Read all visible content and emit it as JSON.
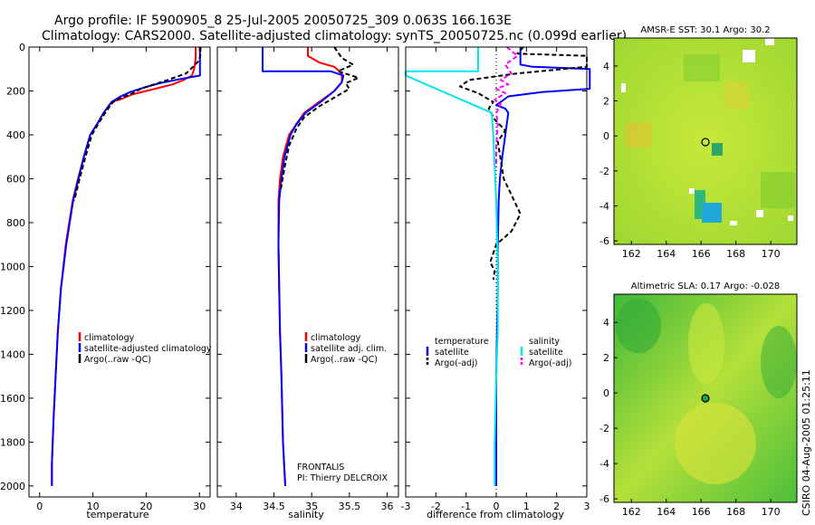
{
  "title_line1": "Argo profile: IF 5900905_8 25-Jul-2005 20050725_309 0.063S 166.163E",
  "title_line2": "Climatology: CARS2000. Satellite-adjusted climatology: synTS_20050725.nc (0.099d earlier)",
  "side_label": "CSIRO 04-Aug-2005 01:25:11",
  "chart_data": [
    {
      "type": "line",
      "panel": "temperature",
      "xlabel": "temperature",
      "xlim": [
        -2,
        32
      ],
      "ylim": [
        2050,
        0
      ],
      "xticks": [
        "0",
        "10",
        "20",
        "30"
      ],
      "yticks": [
        "0",
        "200",
        "400",
        "600",
        "800",
        "1000",
        "1200",
        "1400",
        "1600",
        "1800",
        "2000"
      ],
      "legend": [
        "climatology",
        "satellite-adjusted climatology",
        "Argo(..raw -QC)"
      ],
      "series": [
        {
          "name": "climatology",
          "color": "#ff0000",
          "dash": "",
          "width": 2,
          "x": [
            29.3,
            29.3,
            29.0,
            28.6,
            27.0,
            25.0,
            22.5,
            20.0,
            17.5,
            15.5,
            13.5,
            12.0,
            10.8,
            9.5,
            8.3,
            7.2,
            6.2,
            4.9,
            4.0,
            3.4,
            3.0,
            2.6,
            2.3,
            2.3
          ],
          "y": [
            0,
            50,
            100,
            130,
            150,
            170,
            185,
            200,
            215,
            235,
            250,
            300,
            350,
            400,
            500,
            600,
            700,
            900,
            1100,
            1300,
            1500,
            1700,
            1900,
            2000
          ]
        },
        {
          "name": "satellite-adjusted climatology",
          "color": "#0000ff",
          "dash": "",
          "width": 2,
          "x": [
            30.1,
            30.1,
            30.1,
            30.1,
            26.5,
            22.5,
            19.5,
            17.0,
            15.2,
            13.5,
            12.0,
            10.8,
            9.5,
            8.3,
            7.3,
            6.3,
            5.0,
            4.0,
            3.4,
            3.0,
            2.6,
            2.3,
            2.3
          ],
          "y": [
            0,
            50,
            100,
            130,
            145,
            165,
            185,
            205,
            225,
            250,
            300,
            350,
            400,
            500,
            600,
            700,
            900,
            1100,
            1300,
            1500,
            1700,
            1900,
            2000
          ]
        },
        {
          "name": "Argo(..raw -QC)",
          "color": "#000000",
          "dash": "5,3",
          "width": 2,
          "x": [
            30.2,
            30.2,
            30.0,
            28.8,
            27.5,
            24.0,
            21.5,
            19.0,
            17.5,
            15.5,
            13.8,
            12.3,
            11.0,
            9.8,
            8.6,
            7.5,
            6.5
          ],
          "y": [
            0,
            30,
            60,
            90,
            120,
            150,
            170,
            190,
            210,
            230,
            250,
            300,
            350,
            400,
            500,
            600,
            700
          ]
        }
      ]
    },
    {
      "type": "line",
      "panel": "salinity",
      "xlabel": "salinity",
      "xlim": [
        33.75,
        36.15
      ],
      "ylim": [
        2050,
        0
      ],
      "xticks": [
        "34",
        "34.5",
        "35",
        "35.5",
        "36"
      ],
      "legend": [
        "climatology",
        "satellite adj. clim.",
        "Argo(..raw -QC)"
      ],
      "annotation": [
        "FRONTALIS",
        "PI: Thierry DELCROIX"
      ],
      "series": [
        {
          "name": "climatology",
          "color": "#ff0000",
          "dash": "",
          "width": 2,
          "x": [
            34.95,
            34.95,
            35.1,
            35.3,
            35.4,
            35.4,
            35.3,
            35.1,
            34.9,
            34.8,
            34.7,
            34.62,
            34.58,
            34.56,
            34.56,
            34.57,
            34.58,
            34.6,
            34.62,
            34.65
          ],
          "y": [
            0,
            40,
            70,
            90,
            120,
            160,
            200,
            250,
            300,
            350,
            400,
            500,
            600,
            700,
            900,
            1100,
            1300,
            1500,
            1800,
            2000
          ]
        },
        {
          "name": "satellite adj. clim.",
          "color": "#0000ff",
          "dash": "",
          "width": 2,
          "x": [
            34.35,
            34.35,
            34.35,
            35.25,
            35.42,
            35.4,
            35.3,
            35.12,
            34.92,
            34.8,
            34.72,
            34.64,
            34.6,
            34.57,
            34.56,
            34.57,
            34.58,
            34.6,
            34.62,
            34.65
          ],
          "y": [
            0,
            60,
            110,
            110,
            130,
            160,
            200,
            250,
            300,
            350,
            400,
            500,
            600,
            700,
            900,
            1100,
            1300,
            1500,
            1800,
            2000
          ]
        },
        {
          "name": "Argo(..raw -QC)",
          "color": "#000000",
          "dash": "5,3",
          "width": 2,
          "x": [
            35.3,
            35.4,
            35.55,
            35.35,
            35.62,
            35.45,
            35.5,
            35.3,
            35.1,
            34.9,
            34.8,
            34.7,
            34.64,
            34.59
          ],
          "y": [
            0,
            50,
            80,
            110,
            140,
            165,
            190,
            230,
            270,
            320,
            370,
            450,
            550,
            650
          ]
        }
      ]
    },
    {
      "type": "line",
      "panel": "difference",
      "xlabel": "difference from climatology",
      "xlim": [
        -3,
        3
      ],
      "ylim": [
        2050,
        0
      ],
      "xticks": [
        "-3",
        "-2",
        "-1",
        "0",
        "1",
        "2",
        "3"
      ],
      "legend_left": {
        "heading": "temperature",
        "items": [
          "satellite",
          "Argo(-adj)"
        ]
      },
      "legend_right": {
        "heading": "salinity",
        "items": [
          "satellite",
          "Argo(-adj)"
        ]
      },
      "series": [
        {
          "name": "temperature satellite",
          "color": "#0000ff",
          "dash": "",
          "width": 2,
          "x": [
            0.8,
            0.8,
            1.2,
            3.1,
            3.1,
            1.5,
            0.4,
            0.0,
            0.3,
            0.4,
            0.3,
            0.2,
            0.12,
            0.08,
            0.05,
            0.05,
            0.0,
            0.0
          ],
          "y": [
            0,
            80,
            90,
            100,
            190,
            205,
            225,
            265,
            280,
            300,
            400,
            500,
            600,
            700,
            900,
            1100,
            1500,
            2000
          ]
        },
        {
          "name": "temperature Argo(-adj)",
          "color": "#000000",
          "dash": "5,3",
          "width": 2,
          "x": [
            0.9,
            0.7,
            3.0,
            3.0,
            0.7,
            -0.9,
            -1.2,
            -0.6,
            -0.1,
            -0.25,
            -0.05,
            0.3,
            0.05,
            0.25,
            0.8,
            0.5,
            0.0,
            -0.2,
            -0.05,
            -0.1
          ],
          "y": [
            0,
            30,
            40,
            90,
            120,
            150,
            180,
            210,
            250,
            280,
            330,
            380,
            430,
            600,
            760,
            840,
            900,
            980,
            1020,
            1060
          ]
        },
        {
          "name": "salinity satellite",
          "color": "#00e5ee",
          "dash": "",
          "width": 2,
          "x": [
            -0.6,
            -0.6,
            -3.0,
            -3.0,
            -0.15,
            -0.1,
            0.0,
            0.05,
            0.05,
            0.0,
            -0.05,
            -0.05
          ],
          "y": [
            0,
            110,
            110,
            130,
            300,
            400,
            700,
            1000,
            1300,
            1500,
            1800,
            2000
          ]
        },
        {
          "name": "salinity Argo(-adj)",
          "color": "#ff00ff",
          "dash": "5,3",
          "width": 2,
          "x": [
            0.35,
            0.7,
            0.3,
            0.5,
            0.15,
            0.4,
            0.0,
            0.3,
            -0.05,
            0.15,
            0.0,
            0.05,
            0.0,
            0.0
          ],
          "y": [
            0,
            40,
            80,
            120,
            150,
            170,
            190,
            210,
            240,
            260,
            300,
            350,
            450,
            550
          ]
        }
      ]
    },
    {
      "type": "heatmap",
      "panel": "sst-map",
      "title": "AMSR-E SST: 30.1 Argo: 30.2",
      "xlim": [
        161,
        171.5
      ],
      "ylim": [
        -6.2,
        5.6
      ],
      "xticks": [
        "162",
        "164",
        "166",
        "168",
        "170"
      ],
      "yticks": [
        "4",
        "2",
        "0",
        "-2",
        "-4",
        "-6"
      ],
      "marker": {
        "x": 166.163,
        "y": -0.063
      }
    },
    {
      "type": "heatmap",
      "panel": "sla-map",
      "title": "Altimetric SLA: 0.17 Argo: -0.028",
      "xlim": [
        161,
        171.5
      ],
      "ylim": [
        -6.2,
        5.6
      ],
      "xticks": [
        "162",
        "164",
        "166",
        "168",
        "170"
      ],
      "yticks": [
        "4",
        "2",
        "0",
        "-2",
        "-4",
        "-6"
      ],
      "marker": {
        "x": 166.163,
        "y": -0.063
      }
    }
  ]
}
